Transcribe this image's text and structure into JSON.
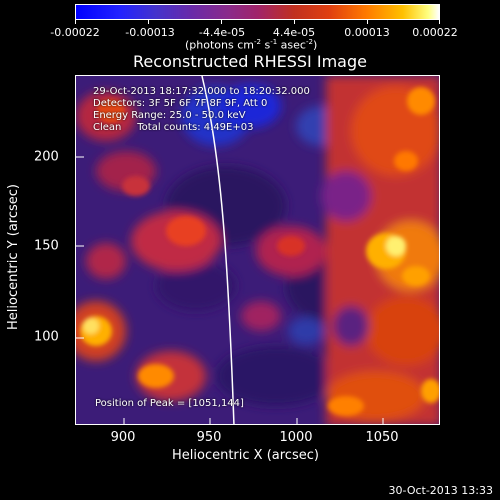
{
  "colorbar": {
    "tick_labels": [
      "-0.00022",
      "-0.00013",
      "-4.4e-05",
      "4.4e-05",
      "0.00013",
      "0.00022"
    ],
    "units_prefix": "(photons cm",
    "units_exp1": "-2",
    "units_mid1": " s",
    "units_exp2": "-1",
    "units_mid2": " asec",
    "units_exp3": "-2",
    "units_suffix": ")"
  },
  "title": "Reconstructed RHESSI Image",
  "info": {
    "time_range": "29-Oct-2013 18:17:32.000 to 18:20:32.000",
    "detectors": "Detectors: 3F 5F 6F 7F 8F 9F, Att 0",
    "energy": "Energy Range: 25.0 - 50.0 keV",
    "method_counts": "Clean     Total counts: 4.49E+03"
  },
  "peak": "Position of Peak = [1051,144]",
  "axes": {
    "x_label": "Heliocentric X (arcsec)",
    "y_label": "Heliocentric Y (arcsec)",
    "x_ticks": [
      "900",
      "950",
      "1000",
      "1050"
    ],
    "y_ticks": [
      "200",
      "150",
      "100"
    ]
  },
  "footer_timestamp": "30-Oct-2013 13:33"
}
